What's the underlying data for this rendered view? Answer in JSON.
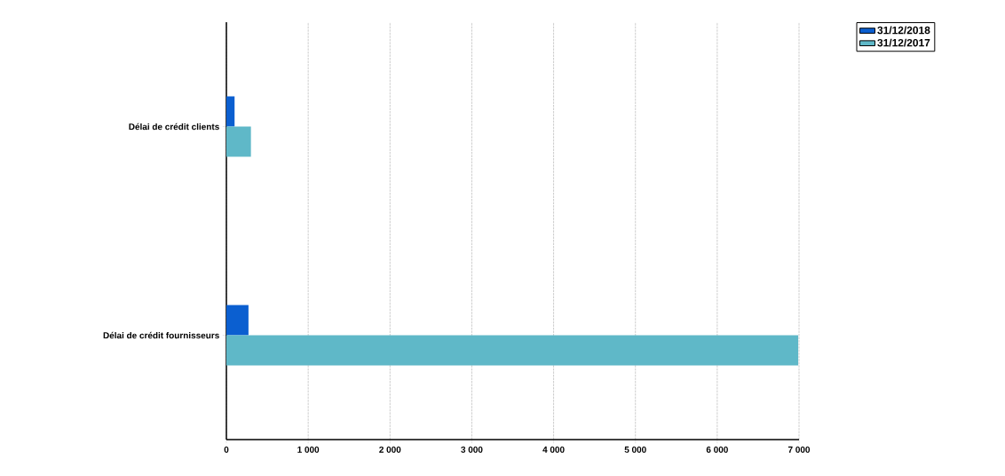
{
  "chart_data": {
    "type": "bar",
    "orientation": "horizontal",
    "categories": [
      "Délai de crédit clients",
      "Délai de crédit fournisseurs"
    ],
    "series": [
      {
        "name": "31/12/2018",
        "color": "#0b5fd0",
        "values": [
          100,
          270
        ]
      },
      {
        "name": "31/12/2017",
        "color": "#5fb8c8",
        "values": [
          300,
          6990
        ]
      }
    ],
    "xlim": [
      0,
      7000
    ],
    "xticks": [
      0,
      {
        "value": 1000,
        "label": "1 000"
      },
      {
        "value": 2000,
        "label": "2 000"
      },
      {
        "value": 3000,
        "label": "3 000"
      },
      {
        "value": 4000,
        "label": "4 000"
      },
      {
        "value": 5000,
        "label": "5 000"
      },
      {
        "value": 6000,
        "label": "6 000"
      },
      {
        "value": 7000,
        "label": "7 000"
      }
    ],
    "grid": "x",
    "legend": "top right"
  }
}
